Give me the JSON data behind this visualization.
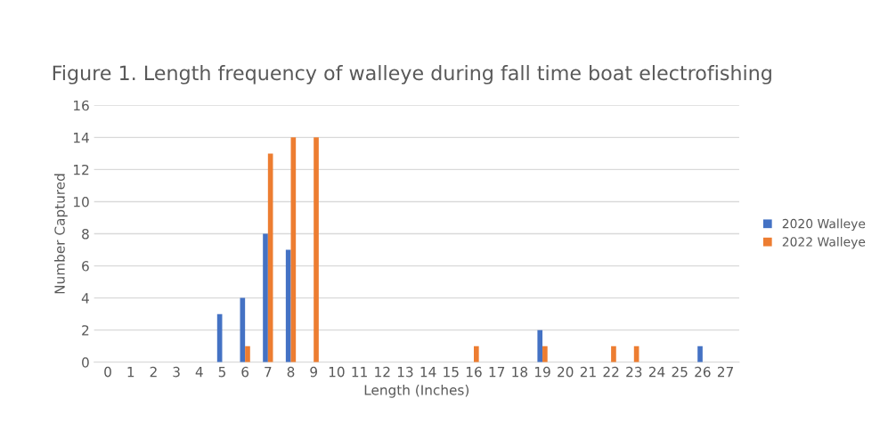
{
  "chart_data": {
    "type": "bar",
    "title": "Figure 1. Length frequency of walleye during fall time boat electrofishing",
    "xlabel": "Length (Inches)",
    "ylabel": "Number Captured",
    "categories": [
      "0",
      "1",
      "2",
      "3",
      "4",
      "5",
      "6",
      "7",
      "8",
      "9",
      "10",
      "11",
      "12",
      "13",
      "14",
      "15",
      "16",
      "17",
      "18",
      "19",
      "20",
      "21",
      "22",
      "23",
      "24",
      "25",
      "26",
      "27"
    ],
    "series": [
      {
        "name": "2020 Walleye",
        "color": "#4472c4",
        "values": [
          0,
          0,
          0,
          0,
          0,
          3,
          4,
          8,
          7,
          0,
          0,
          0,
          0,
          0,
          0,
          0,
          0,
          0,
          0,
          2,
          0,
          0,
          0,
          0,
          0,
          0,
          1,
          0
        ]
      },
      {
        "name": "2022 Walleye",
        "color": "#ed7d31",
        "values": [
          0,
          0,
          0,
          0,
          0,
          0,
          1,
          13,
          14,
          14,
          0,
          0,
          0,
          0,
          0,
          0,
          1,
          0,
          0,
          1,
          0,
          0,
          1,
          1,
          0,
          0,
          0,
          0
        ]
      }
    ],
    "ylim": [
      0,
      16
    ],
    "yticks": [
      0,
      2,
      4,
      6,
      8,
      10,
      12,
      14,
      16
    ],
    "grid": "y",
    "legend": "right"
  }
}
